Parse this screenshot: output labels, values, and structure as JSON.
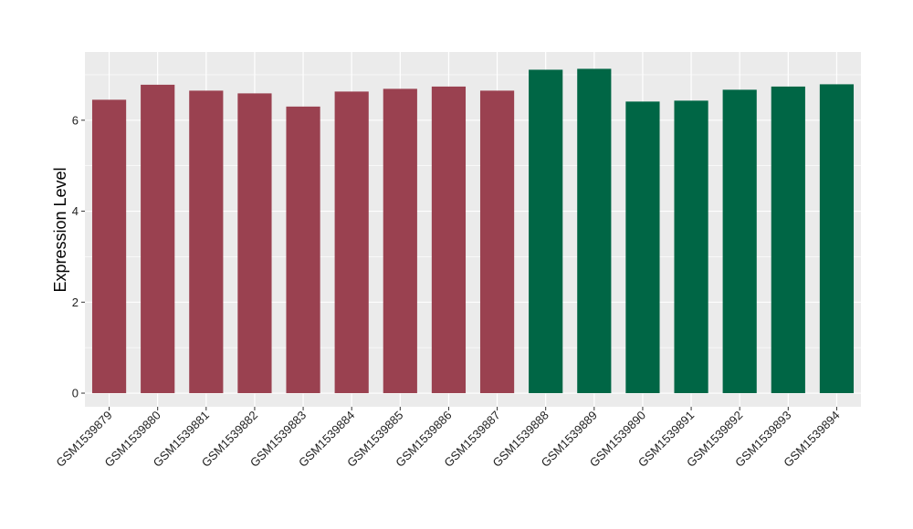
{
  "chart_data": {
    "type": "bar",
    "title": "",
    "xlabel": "",
    "ylabel": "Expression Level",
    "ylim": [
      -0.3,
      7.5
    ],
    "yticks": [
      0,
      2,
      4,
      6
    ],
    "grid": true,
    "legend": "none",
    "categories": [
      "GSM1539879",
      "GSM1539880",
      "GSM1539881",
      "GSM1539882",
      "GSM1539883",
      "GSM1539884",
      "GSM1539885",
      "GSM1539886",
      "GSM1539887",
      "GSM1539888",
      "GSM1539889",
      "GSM1539890",
      "GSM1539891",
      "GSM1539892",
      "GSM1539893",
      "GSM1539894"
    ],
    "values": [
      6.45,
      6.78,
      6.65,
      6.59,
      6.3,
      6.63,
      6.69,
      6.74,
      6.65,
      7.11,
      7.13,
      6.41,
      6.43,
      6.67,
      6.74,
      6.79
    ],
    "group_colors": [
      "#9a4150",
      "#9a4150",
      "#9a4150",
      "#9a4150",
      "#9a4150",
      "#9a4150",
      "#9a4150",
      "#9a4150",
      "#9a4150",
      "#006645",
      "#006645",
      "#006645",
      "#006645",
      "#006645",
      "#006645",
      "#006645"
    ],
    "panel_color": "#ebebeb",
    "grid_color": "#ffffff"
  }
}
